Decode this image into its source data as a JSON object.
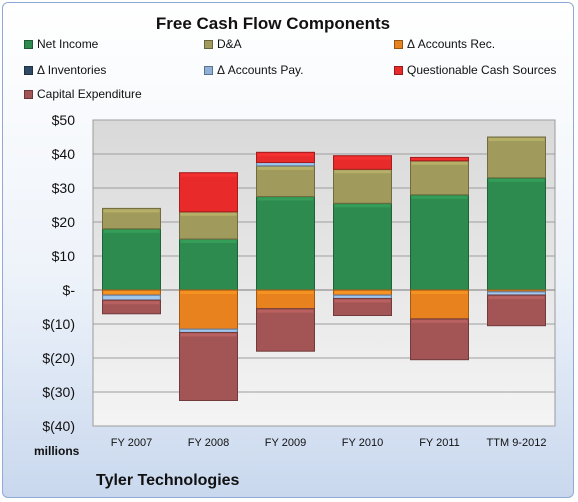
{
  "chart_data": {
    "type": "bar",
    "stacked": true,
    "title": "Free Cash Flow Components",
    "subtitle": "Tyler Technologies",
    "units_label": "millions",
    "categories": [
      "FY 2007",
      "FY 2008",
      "FY 2009",
      "FY 2010",
      "FY 2011",
      "TTM 9-2012"
    ],
    "ylim": [
      -40,
      50
    ],
    "yticks": [
      {
        "value": 50,
        "label": "$50"
      },
      {
        "value": 40,
        "label": "$40"
      },
      {
        "value": 30,
        "label": "$30"
      },
      {
        "value": 20,
        "label": "$20"
      },
      {
        "value": 10,
        "label": "$10"
      },
      {
        "value": 0,
        "label": "$-"
      },
      {
        "value": -10,
        "label": "$(10)"
      },
      {
        "value": -20,
        "label": "$(20)"
      },
      {
        "value": -30,
        "label": "$(30)"
      },
      {
        "value": -40,
        "label": "$(40)"
      }
    ],
    "grid": true,
    "legend_position": "top",
    "series": [
      {
        "name": "Net Income",
        "color": "#2e8b4f",
        "values": [
          18,
          15,
          27.5,
          25.5,
          28,
          33
        ]
      },
      {
        "name": "D&A",
        "color": "#a09a5c",
        "values": [
          6,
          8,
          9,
          10,
          10,
          12
        ]
      },
      {
        "name": "Δ Accounts Rec.",
        "color": "#e8821e",
        "values": [
          -1.5,
          -11.5,
          -5.5,
          -1.5,
          -8.5,
          -0.5
        ]
      },
      {
        "name": "Δ Inventories",
        "color": "#2f4a64",
        "values": [
          0,
          0,
          0,
          0,
          0,
          0
        ]
      },
      {
        "name": "Δ Accounts Pay.",
        "color": "#8fb0d8",
        "values": [
          -1.5,
          -1,
          1,
          -1,
          0,
          -1
        ]
      },
      {
        "name": "Questionable Cash Sources",
        "color": "#e82a2a",
        "values": [
          0,
          11.5,
          3,
          4,
          1,
          0
        ]
      },
      {
        "name": "Capital Expenditure",
        "color": "#a35555",
        "values": [
          -4,
          -20,
          -12.5,
          -5,
          -12,
          -9
        ]
      }
    ]
  }
}
